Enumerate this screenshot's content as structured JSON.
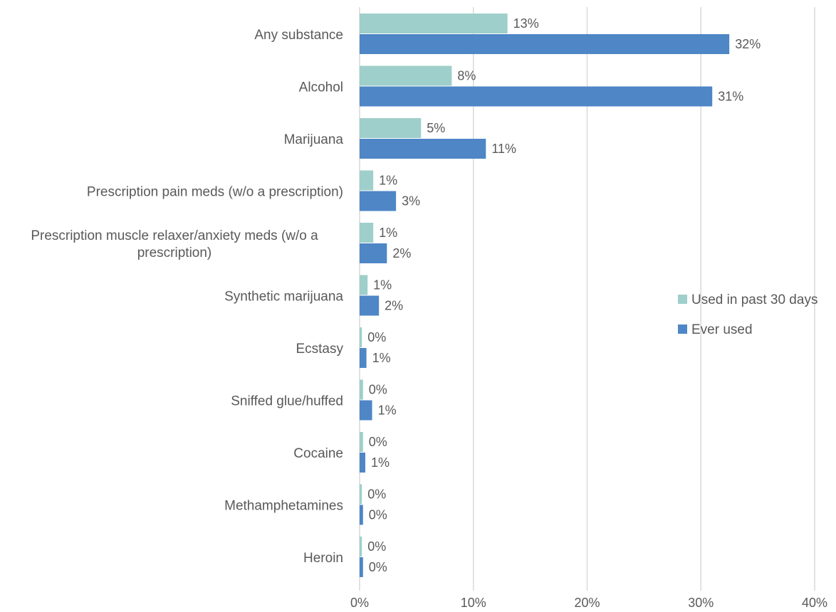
{
  "chart_data": {
    "type": "bar",
    "orientation": "horizontal",
    "categories": [
      "Any substance",
      "Alcohol",
      "Marijuana",
      "Prescription pain meds (w/o a prescription)",
      "Prescription muscle relaxer/anxiety meds (w/o a prescription)",
      "Synthetic marijuana",
      "Ecstasy",
      "Sniffed glue/huffed",
      "Cocaine",
      "Methamphetamines",
      "Heroin"
    ],
    "series": [
      {
        "name": "Used in past 30 days",
        "color": "#9fcfca",
        "values": [
          13,
          8.1,
          5.4,
          1.2,
          1.2,
          0.7,
          0.2,
          0.3,
          0.3,
          0.2,
          0.2
        ],
        "labels": [
          "13%",
          "8%",
          "5%",
          "1%",
          "1%",
          "1%",
          "0%",
          "0%",
          "0%",
          "0%",
          "0%"
        ]
      },
      {
        "name": "Ever used",
        "color": "#4e86c6",
        "values": [
          32.5,
          31,
          11.1,
          3.2,
          2.4,
          1.7,
          0.6,
          1.1,
          0.5,
          0.3,
          0.3
        ],
        "labels": [
          "32%",
          "31%",
          "11%",
          "3%",
          "2%",
          "2%",
          "1%",
          "1%",
          "1%",
          "0%",
          "0%"
        ]
      }
    ],
    "xaxis": {
      "range": [
        0,
        40
      ],
      "ticks": [
        0,
        10,
        20,
        30,
        40
      ],
      "tick_labels": [
        "0%",
        "10%",
        "20%",
        "30%",
        "40%"
      ]
    },
    "title": "",
    "xlabel": "",
    "ylabel": "",
    "grid": true,
    "legend_position": "right"
  }
}
